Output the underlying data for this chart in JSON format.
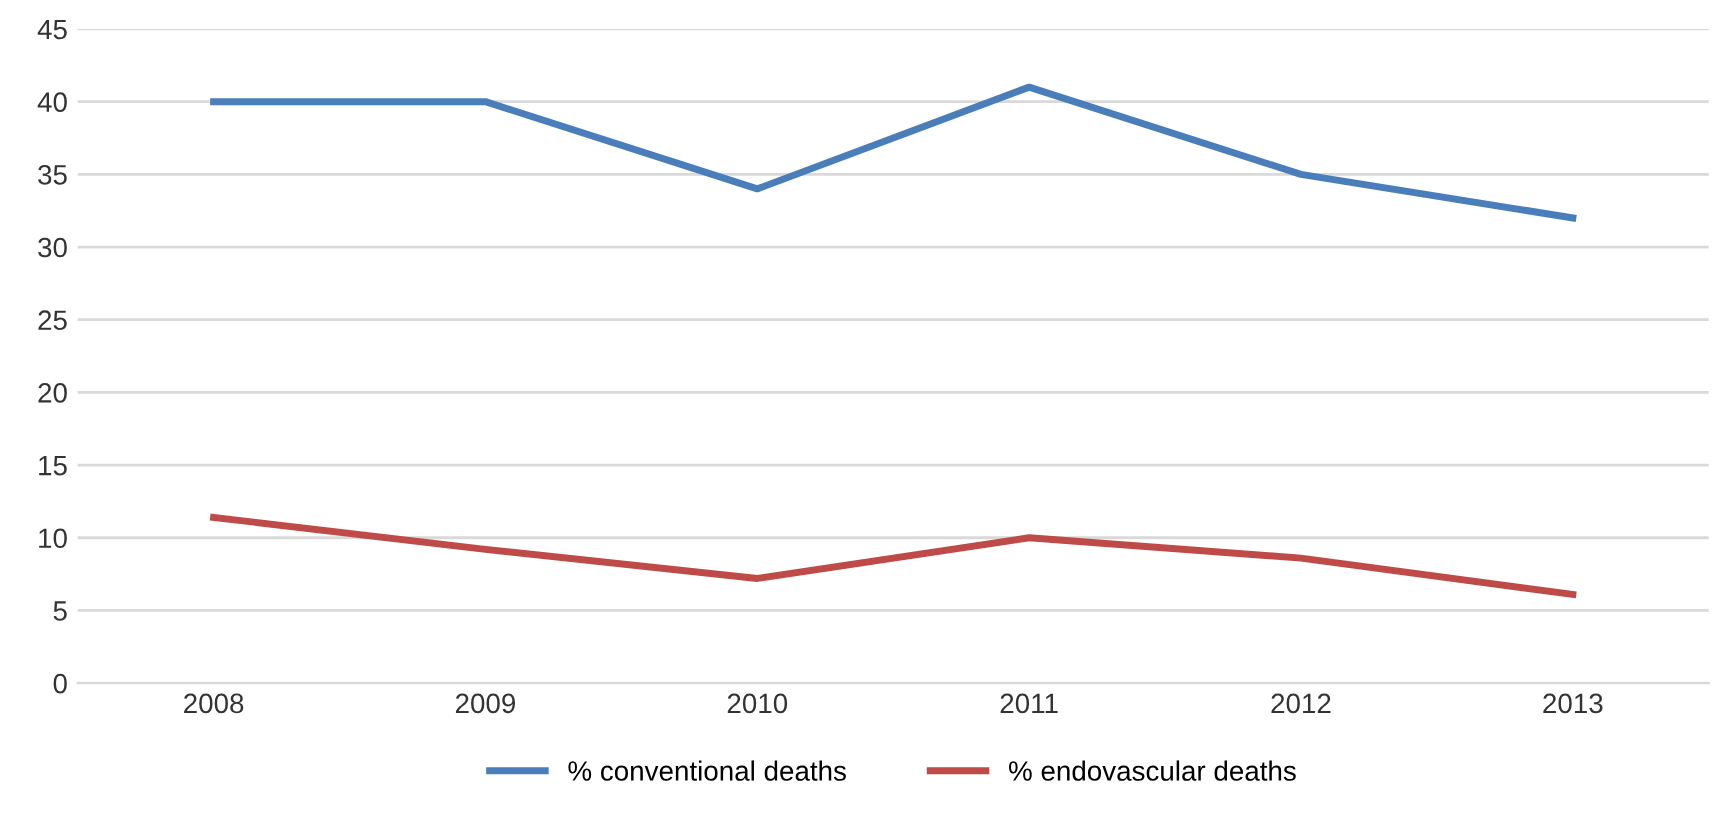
{
  "chart_data": {
    "type": "line",
    "categories": [
      "2008",
      "2009",
      "2010",
      "2011",
      "2012",
      "2013"
    ],
    "series": [
      {
        "name": "% conventional deaths",
        "color": "#4a7ebb",
        "values": [
          40,
          40,
          34,
          41,
          35,
          32
        ]
      },
      {
        "name": "% endovascular deaths",
        "color": "#be4b48",
        "values": [
          11.4,
          9.2,
          7.2,
          10,
          8.6,
          6.1
        ]
      }
    ],
    "ylim": [
      0,
      45
    ],
    "yticks": [
      0,
      5,
      10,
      15,
      20,
      25,
      30,
      35,
      40,
      45
    ],
    "grid": "y",
    "legend": "bottom",
    "marker": "none",
    "line_style": "solid"
  }
}
